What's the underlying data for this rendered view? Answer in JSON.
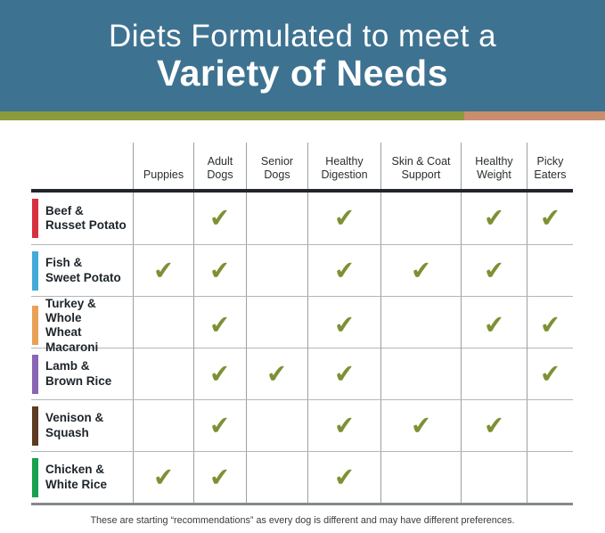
{
  "header": {
    "title_line1": "Diets Formulated to meet a",
    "title_line2": "Variety of Needs"
  },
  "colors": {
    "banner_bg": "#3e7291",
    "stripe_left": "#8a9a3c",
    "stripe_right": "#c98e6b",
    "check": "#7d9134"
  },
  "chart_data": {
    "type": "table",
    "title": "Diets Formulated to meet a Variety of Needs",
    "columns": [
      "Puppies",
      "Adult\nDogs",
      "Senior\nDogs",
      "Healthy\nDigestion",
      "Skin & Coat\nSupport",
      "Healthy\nWeight",
      "Picky\nEaters"
    ],
    "rows": [
      {
        "label": "Beef &\nRusset Potato",
        "bar_color": "#d7303f",
        "checks": [
          0,
          1,
          0,
          1,
          0,
          1,
          1
        ]
      },
      {
        "label": "Fish &\nSweet Potato",
        "bar_color": "#44aad9",
        "checks": [
          1,
          1,
          0,
          1,
          1,
          1,
          0
        ]
      },
      {
        "label": "Turkey & Whole\nWheat Macaroni",
        "bar_color": "#e9a156",
        "checks": [
          0,
          1,
          0,
          1,
          0,
          1,
          1
        ]
      },
      {
        "label": "Lamb &\nBrown Rice",
        "bar_color": "#8766b4",
        "checks": [
          0,
          1,
          1,
          1,
          0,
          0,
          1
        ]
      },
      {
        "label": "Venison &\nSquash",
        "bar_color": "#5d3a21",
        "checks": [
          0,
          1,
          0,
          1,
          1,
          1,
          0
        ]
      },
      {
        "label": "Chicken &\nWhite Rice",
        "bar_color": "#17a04f",
        "checks": [
          1,
          1,
          0,
          1,
          0,
          0,
          0
        ]
      }
    ],
    "check_icon": "✔",
    "footnote": "These are starting “recommendations” as every dog is different and may have different preferences."
  }
}
